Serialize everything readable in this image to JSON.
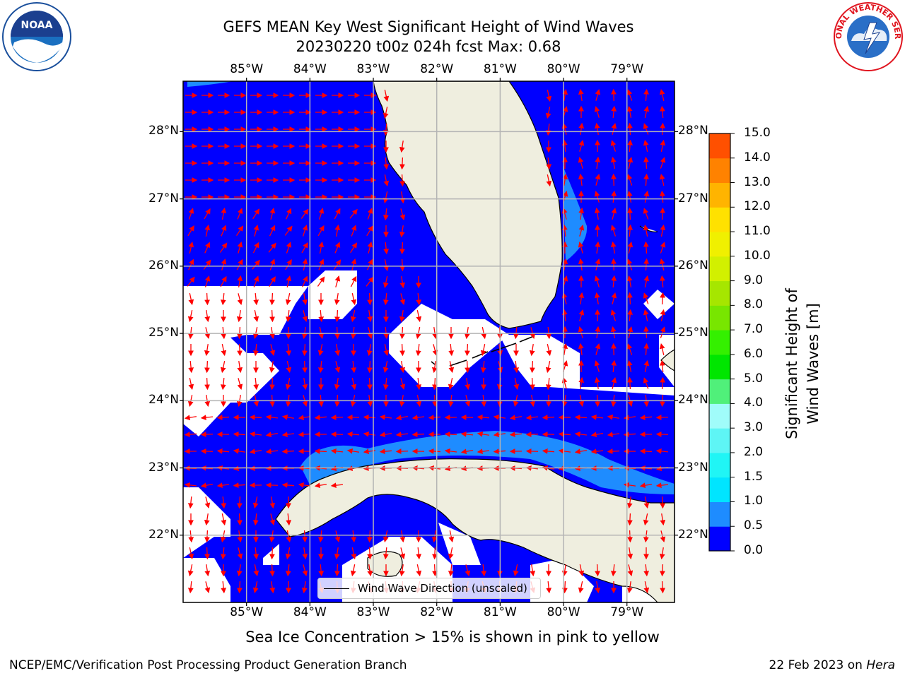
{
  "title": {
    "line1": "GEFS MEAN Key West Significant Height of Wind Waves",
    "line2": "20230220 t00z 024h fcst   Max: 0.68"
  },
  "map": {
    "lon_range": [
      -86.0,
      -78.25
    ],
    "lat_range": [
      21.0,
      28.75
    ],
    "lon_ticks": [
      -85,
      -84,
      -83,
      -82,
      -81,
      -80,
      -79
    ],
    "lon_labels": [
      "85°W",
      "84°W",
      "83°W",
      "82°W",
      "81°W",
      "80°W",
      "79°W"
    ],
    "lat_ticks": [
      28,
      27,
      26,
      25,
      24,
      23,
      22
    ],
    "lat_labels": [
      "28°N",
      "27°N",
      "26°N",
      "25°N",
      "24°N",
      "23°N",
      "22°N"
    ],
    "colors": {
      "sea": "#0000ff",
      "sea_light": "#1e8cff",
      "land": "#efeedf",
      "grid": "#b4b4b4",
      "arrow": "#ff0000"
    }
  },
  "legend": {
    "label": "Wind Wave Direction (unscaled)"
  },
  "colorbar": {
    "title": "Significant Height of Wind Waves [m]",
    "tick_labels": [
      "15.0",
      "14.0",
      "13.0",
      "12.0",
      "11.0",
      "10.0",
      "9.0",
      "8.0",
      "7.0",
      "6.0",
      "5.0",
      "4.0",
      "3.0",
      "2.0",
      "1.5",
      "1.0",
      "0.5",
      "0.0"
    ],
    "bin_colors": [
      "#0000ff",
      "#1e8cff",
      "#00e5ff",
      "#20f5f5",
      "#5ef5f5",
      "#a0fcfa",
      "#50f07a",
      "#00e600",
      "#34f000",
      "#78e600",
      "#a6e600",
      "#d2f000",
      "#f0f000",
      "#ffe100",
      "#ffb400",
      "#ff8200",
      "#ff5000",
      "#ff1e00",
      "#ff0000"
    ]
  },
  "note": "Sea Ice Concentration > 15% is shown in pink to yellow",
  "footer": {
    "left": "NCEP/EMC/Verification Post Processing Product Generation Branch",
    "date": "22 Feb 2023 on ",
    "host": "Hera"
  },
  "logos": {
    "noaa_text": "NOAA",
    "nws_text": "NATIONAL WEATHER SERVICE"
  }
}
